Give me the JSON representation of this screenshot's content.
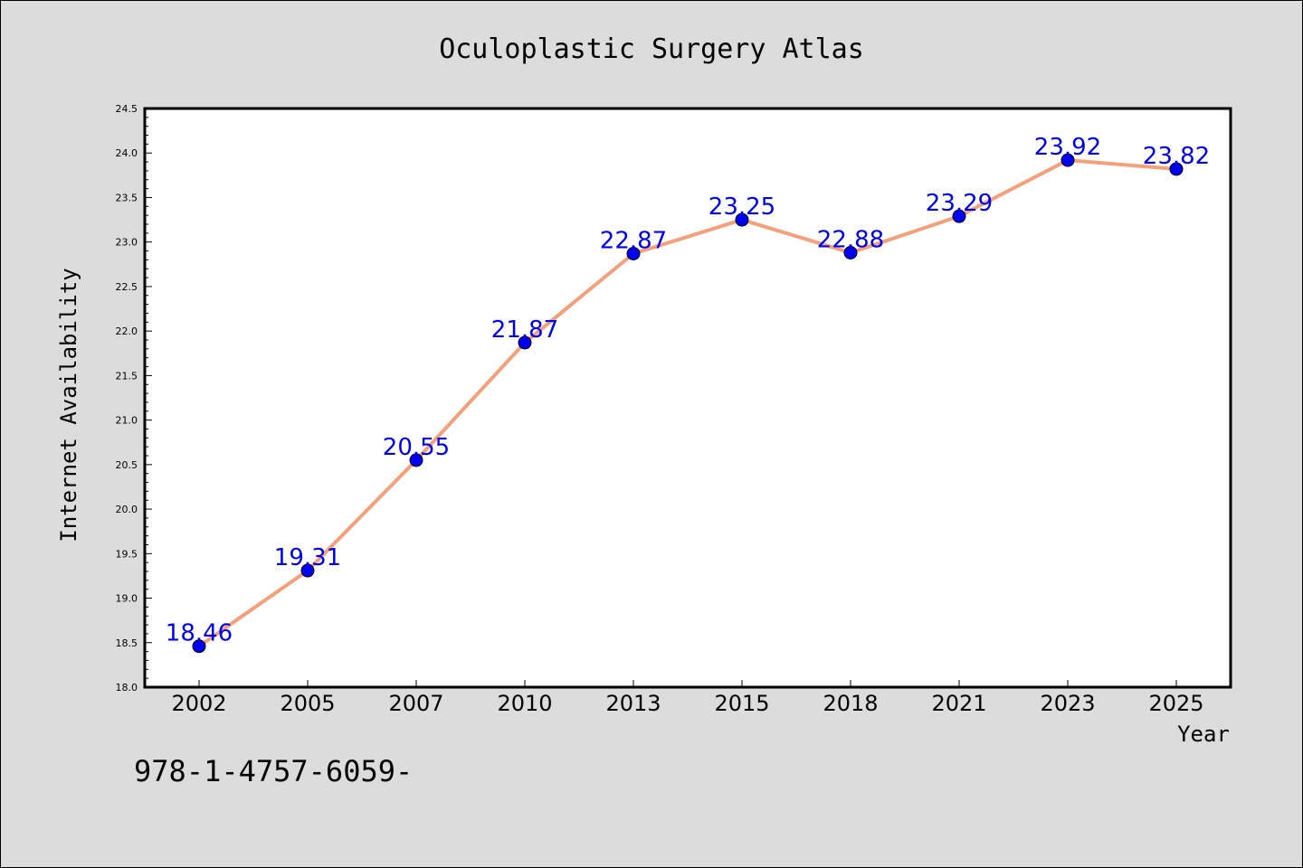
{
  "chart_data": {
    "type": "line",
    "title": "Oculoplastic Surgery Atlas",
    "xlabel": "Year",
    "ylabel": "Internet Availability",
    "categories": [
      "2002",
      "2005",
      "2007",
      "2010",
      "2013",
      "2015",
      "2018",
      "2021",
      "2023",
      "2025"
    ],
    "series": [
      {
        "values": [
          18.46,
          19.31,
          20.55,
          21.87,
          22.87,
          23.25,
          22.88,
          23.29,
          23.92,
          23.82
        ],
        "labels": [
          "18.46",
          "19.31",
          "20.55",
          "21.87",
          "22.87",
          "23.25",
          "22.88",
          "23.29",
          "23.92",
          "23.82"
        ],
        "line_color": "#f4a07a",
        "marker_color": "#0000ee"
      }
    ],
    "yticks": [
      "18.0",
      "18.5",
      "19.0",
      "19.5",
      "20.0",
      "20.5",
      "21.0",
      "21.5",
      "22.0",
      "22.5",
      "23.0",
      "23.5",
      "24.0",
      "24.5"
    ],
    "ylim": [
      18.0,
      24.5
    ],
    "grid": false,
    "legend": "none"
  },
  "footer": {
    "isbn": "978-1-4757-6059-"
  },
  "colors": {
    "background": "#dcdcdc",
    "plot_background": "#ffffff"
  }
}
